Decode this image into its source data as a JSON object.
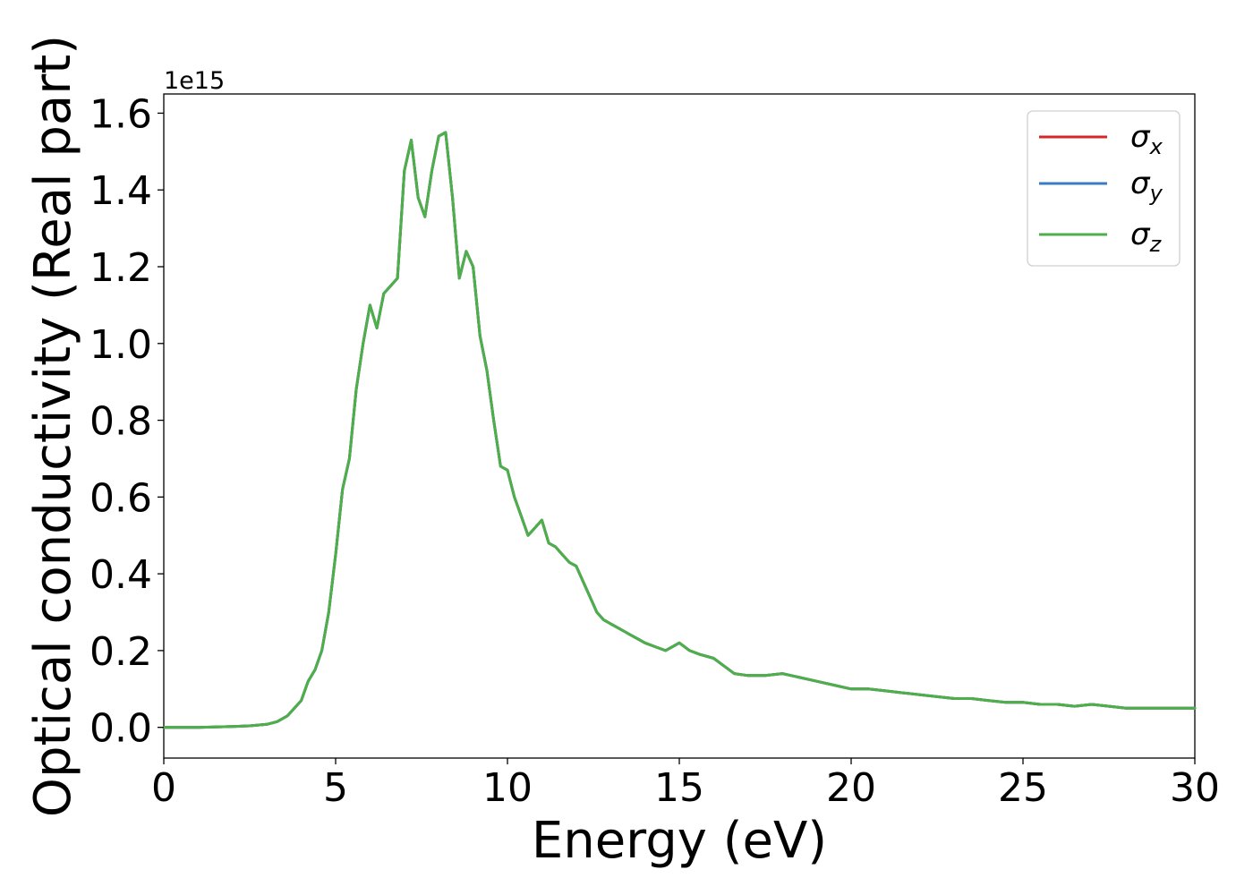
{
  "chart_data": {
    "type": "line",
    "xlabel": "Energy (eV)",
    "ylabel": "Optical conductivity (Real part)",
    "y_offset_label": "1e15",
    "y_scale": 1000000000000000.0,
    "xlim": [
      0,
      30
    ],
    "ylim": [
      -0.08,
      1.65
    ],
    "xticks": [
      0,
      5,
      10,
      15,
      20,
      25,
      30
    ],
    "xtick_labels": [
      "0",
      "5",
      "10",
      "15",
      "20",
      "25",
      "30"
    ],
    "yticks": [
      0.0,
      0.2,
      0.4,
      0.6,
      0.8,
      1.0,
      1.2,
      1.4,
      1.6
    ],
    "ytick_labels": [
      "0.0",
      "0.2",
      "0.4",
      "0.6",
      "0.8",
      "1.0",
      "1.2",
      "1.4",
      "1.6"
    ],
    "grid": false,
    "legend_position": "top-right",
    "series": [
      {
        "name": "σ",
        "subscript": "x",
        "color": "#d62728"
      },
      {
        "name": "σ",
        "subscript": "y",
        "color": "#3a7cc0"
      },
      {
        "name": "σ",
        "subscript": "z",
        "color": "#4daf4a"
      }
    ],
    "x": [
      0,
      1,
      2,
      2.5,
      3,
      3.3,
      3.6,
      3.8,
      4.0,
      4.2,
      4.4,
      4.6,
      4.8,
      5.0,
      5.2,
      5.4,
      5.6,
      5.8,
      6.0,
      6.2,
      6.4,
      6.6,
      6.8,
      7.0,
      7.2,
      7.4,
      7.6,
      7.8,
      8.0,
      8.2,
      8.4,
      8.6,
      8.8,
      9.0,
      9.2,
      9.4,
      9.6,
      9.8,
      10.0,
      10.2,
      10.4,
      10.6,
      10.8,
      11.0,
      11.2,
      11.4,
      11.6,
      11.8,
      12.0,
      12.2,
      12.4,
      12.6,
      12.8,
      13.0,
      13.2,
      13.4,
      13.6,
      13.8,
      14.0,
      14.3,
      14.6,
      15.0,
      15.3,
      15.6,
      16.0,
      16.3,
      16.6,
      17.0,
      17.5,
      18.0,
      18.5,
      19.0,
      19.5,
      20.0,
      20.5,
      21.0,
      21.5,
      22.0,
      22.5,
      23.0,
      23.5,
      24.0,
      24.5,
      25.0,
      25.5,
      26.0,
      26.5,
      27.0,
      27.5,
      28.0,
      28.5,
      29.0,
      29.5,
      30.0
    ],
    "values_x": [
      0.0,
      0.0,
      0.002,
      0.004,
      0.008,
      0.015,
      0.03,
      0.05,
      0.07,
      0.12,
      0.15,
      0.2,
      0.3,
      0.45,
      0.62,
      0.7,
      0.88,
      1.0,
      1.1,
      1.04,
      1.13,
      1.15,
      1.17,
      1.45,
      1.53,
      1.38,
      1.33,
      1.45,
      1.54,
      1.55,
      1.38,
      1.17,
      1.24,
      1.2,
      1.02,
      0.93,
      0.8,
      0.68,
      0.67,
      0.6,
      0.55,
      0.5,
      0.52,
      0.54,
      0.48,
      0.47,
      0.45,
      0.43,
      0.42,
      0.38,
      0.34,
      0.3,
      0.28,
      0.27,
      0.26,
      0.25,
      0.24,
      0.23,
      0.22,
      0.21,
      0.2,
      0.22,
      0.2,
      0.19,
      0.18,
      0.16,
      0.14,
      0.135,
      0.135,
      0.14,
      0.13,
      0.12,
      0.11,
      0.1,
      0.1,
      0.095,
      0.09,
      0.085,
      0.08,
      0.075,
      0.075,
      0.07,
      0.065,
      0.065,
      0.06,
      0.06,
      0.055,
      0.06,
      0.055,
      0.05,
      0.05,
      0.05,
      0.05,
      0.05
    ],
    "values_y": [
      0.0,
      0.0,
      0.002,
      0.004,
      0.008,
      0.015,
      0.03,
      0.05,
      0.07,
      0.12,
      0.15,
      0.2,
      0.3,
      0.45,
      0.62,
      0.7,
      0.88,
      1.0,
      1.1,
      1.04,
      1.13,
      1.15,
      1.17,
      1.45,
      1.53,
      1.38,
      1.33,
      1.45,
      1.54,
      1.55,
      1.38,
      1.17,
      1.24,
      1.2,
      1.02,
      0.93,
      0.8,
      0.68,
      0.67,
      0.6,
      0.55,
      0.5,
      0.52,
      0.54,
      0.48,
      0.47,
      0.45,
      0.43,
      0.42,
      0.38,
      0.34,
      0.3,
      0.28,
      0.27,
      0.26,
      0.25,
      0.24,
      0.23,
      0.22,
      0.21,
      0.2,
      0.22,
      0.2,
      0.19,
      0.18,
      0.16,
      0.14,
      0.135,
      0.135,
      0.14,
      0.13,
      0.12,
      0.11,
      0.1,
      0.1,
      0.095,
      0.09,
      0.085,
      0.08,
      0.075,
      0.075,
      0.07,
      0.065,
      0.065,
      0.06,
      0.06,
      0.055,
      0.06,
      0.055,
      0.05,
      0.05,
      0.05,
      0.05,
      0.05
    ],
    "values_z": [
      0.0,
      0.0,
      0.002,
      0.004,
      0.008,
      0.015,
      0.03,
      0.05,
      0.07,
      0.12,
      0.15,
      0.2,
      0.3,
      0.45,
      0.62,
      0.7,
      0.88,
      1.0,
      1.1,
      1.04,
      1.13,
      1.15,
      1.17,
      1.45,
      1.53,
      1.38,
      1.33,
      1.45,
      1.54,
      1.55,
      1.38,
      1.17,
      1.24,
      1.2,
      1.02,
      0.93,
      0.8,
      0.68,
      0.67,
      0.6,
      0.55,
      0.5,
      0.52,
      0.54,
      0.48,
      0.47,
      0.45,
      0.43,
      0.42,
      0.38,
      0.34,
      0.3,
      0.28,
      0.27,
      0.26,
      0.25,
      0.24,
      0.23,
      0.22,
      0.21,
      0.2,
      0.22,
      0.2,
      0.19,
      0.18,
      0.16,
      0.14,
      0.135,
      0.135,
      0.14,
      0.13,
      0.12,
      0.11,
      0.1,
      0.1,
      0.095,
      0.09,
      0.085,
      0.08,
      0.075,
      0.075,
      0.07,
      0.065,
      0.065,
      0.06,
      0.06,
      0.055,
      0.06,
      0.055,
      0.05,
      0.05,
      0.05,
      0.05,
      0.05
    ]
  }
}
